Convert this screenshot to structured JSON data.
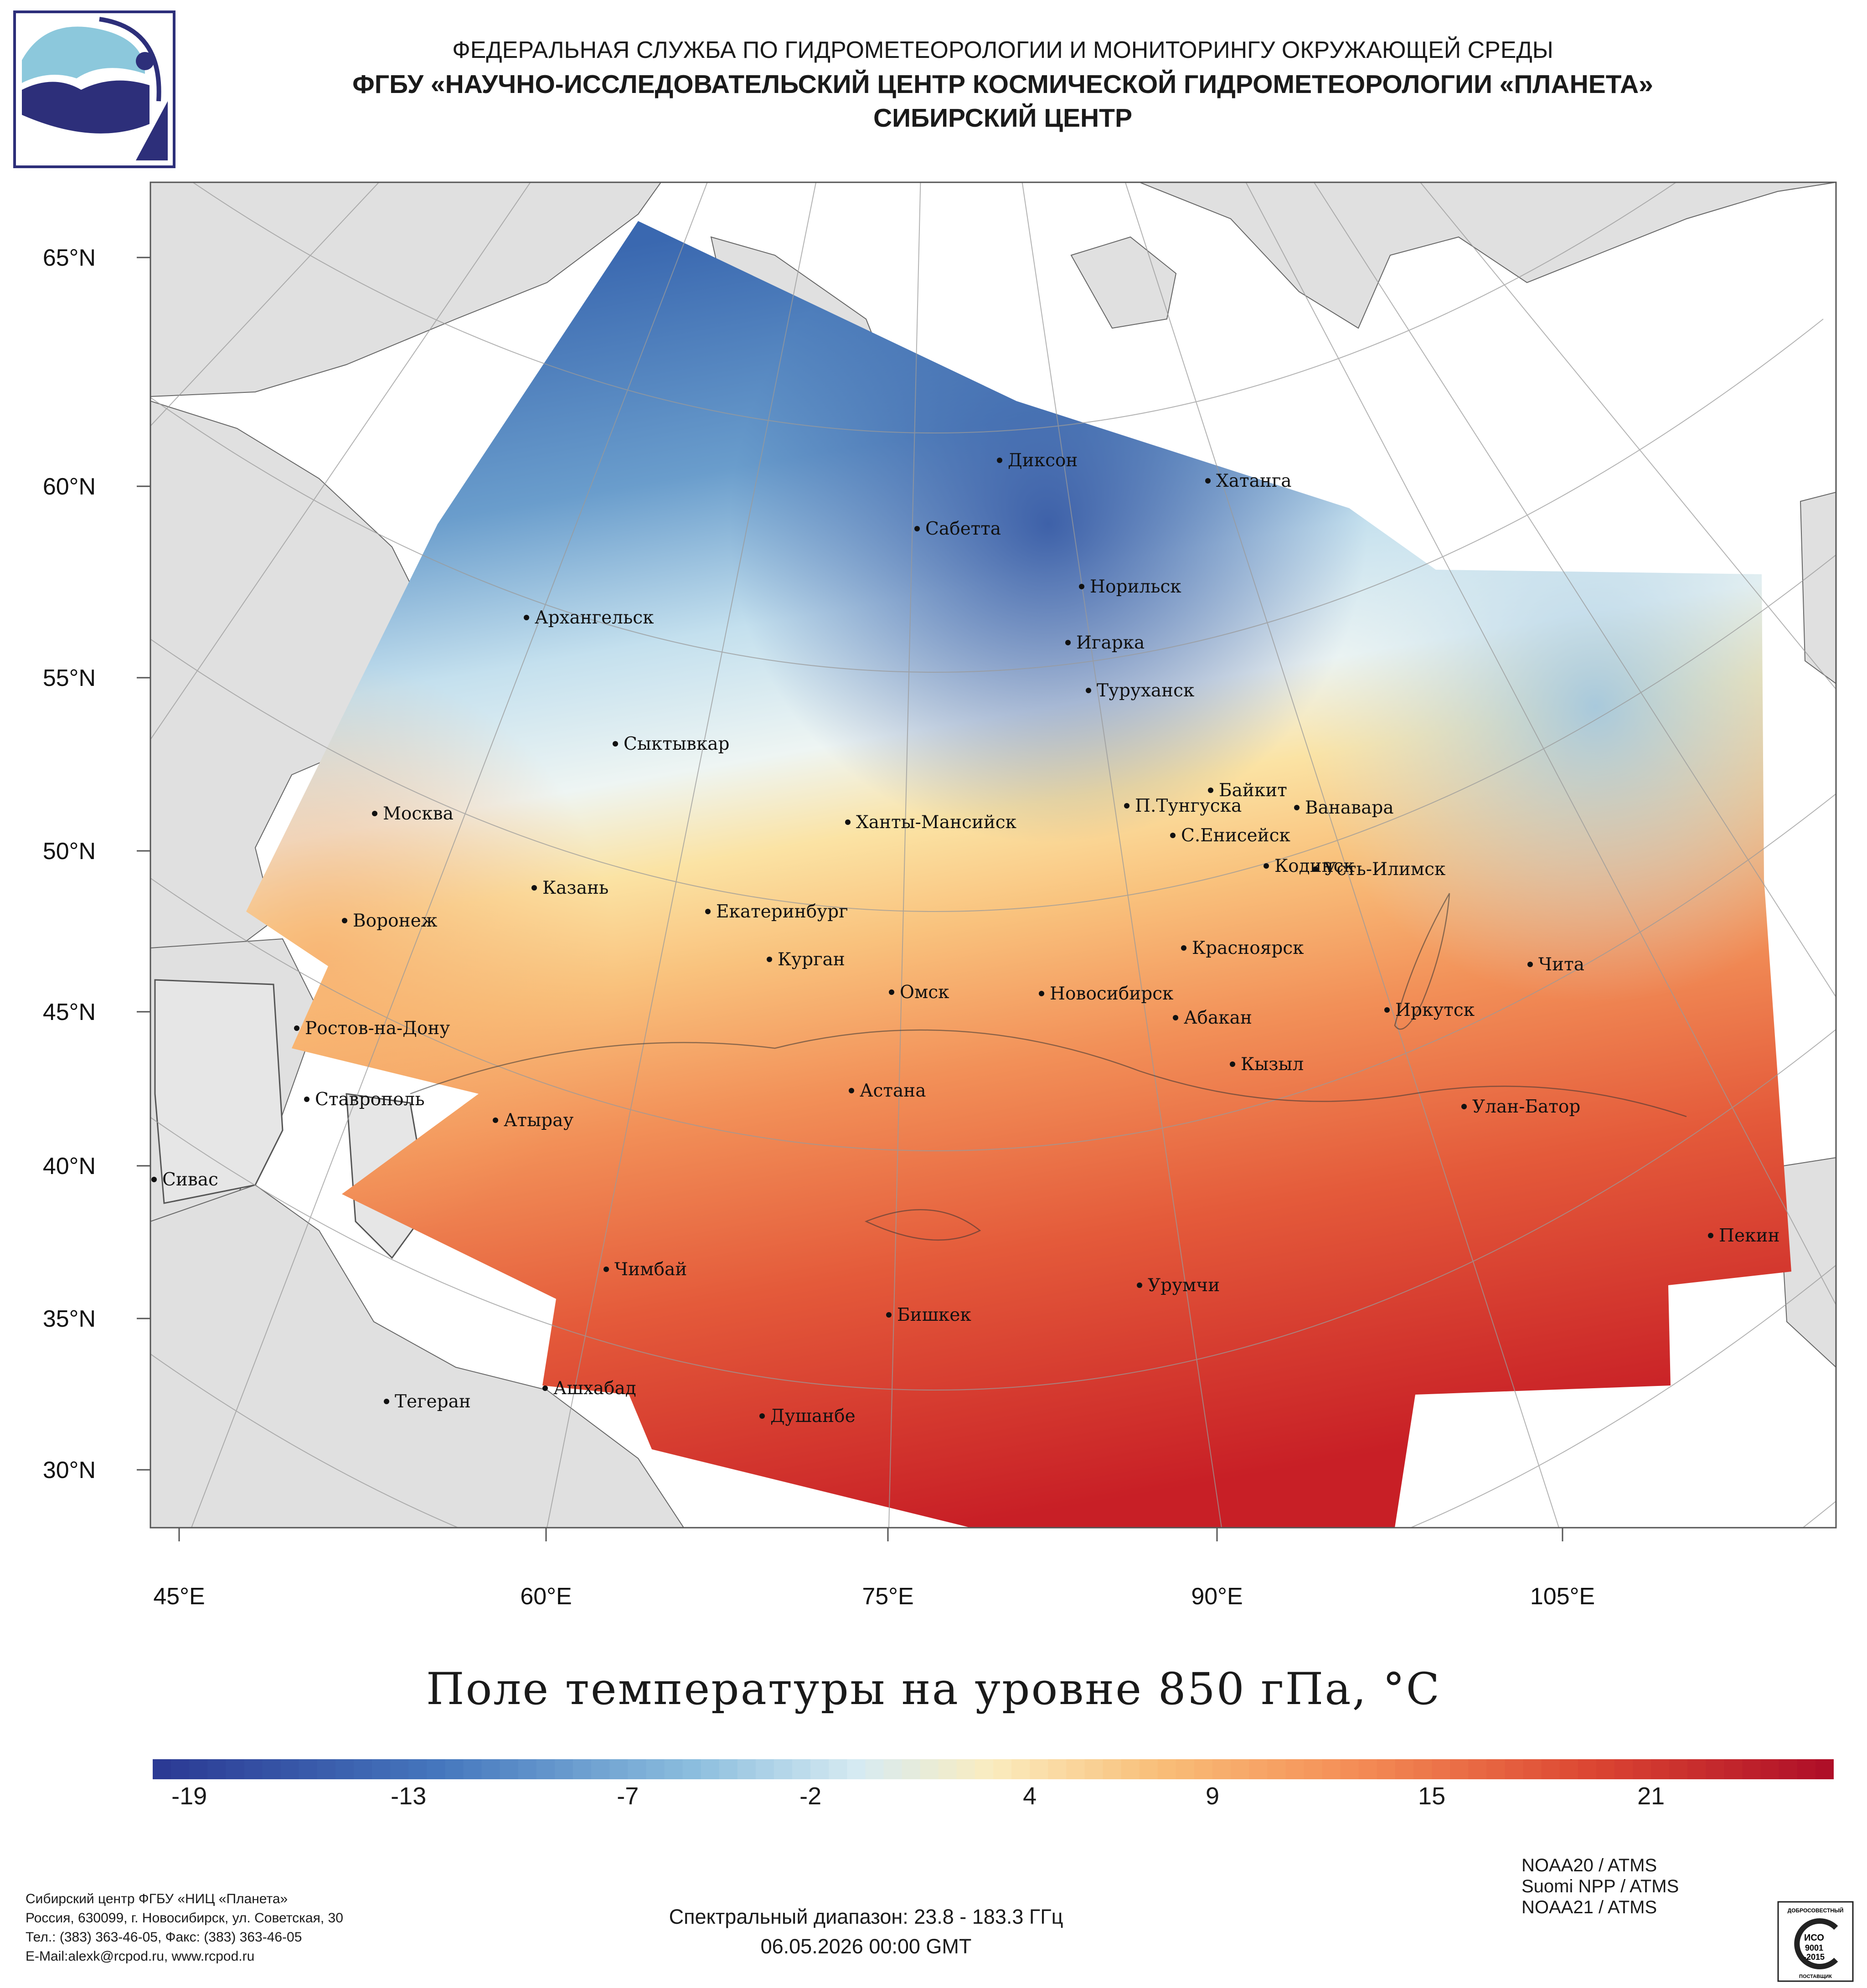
{
  "header": {
    "line1": "ФЕДЕРАЛЬНАЯ СЛУЖБА ПО ГИДРОМЕТЕОРОЛОГИИ И МОНИТОРИНГУ ОКРУЖАЮЩЕЙ СРЕДЫ",
    "line2": "ФГБУ «НАУЧНО-ИССЛЕДОВАТЕЛЬСКИЙ ЦЕНТР КОСМИЧЕСКОЙ ГИДРОМЕТЕОРОЛОГИИ «ПЛАНЕТА»",
    "line3": "СИБИРСКИЙ ЦЕНТР"
  },
  "map": {
    "lat_labels": [
      "65°N",
      "60°N",
      "55°N",
      "50°N",
      "45°N",
      "40°N",
      "35°N",
      "30°N"
    ],
    "lon_labels": [
      "45°E",
      "60°E",
      "75°E",
      "90°E",
      "105°E"
    ],
    "cities": [
      {
        "name": "Диксон"
      },
      {
        "name": "Хатанга"
      },
      {
        "name": "Сабетта"
      },
      {
        "name": "Норильск"
      },
      {
        "name": "Архангельск"
      },
      {
        "name": "Игарка"
      },
      {
        "name": "Туруханск"
      },
      {
        "name": "Сыктывкар"
      },
      {
        "name": "Байкит"
      },
      {
        "name": "П.Тунгуска"
      },
      {
        "name": "Ванавара"
      },
      {
        "name": "Москва"
      },
      {
        "name": "Ханты-Мансийск"
      },
      {
        "name": "С.Енисейск"
      },
      {
        "name": "Кодинск"
      },
      {
        "name": "Усть-Илимск"
      },
      {
        "name": "Казань"
      },
      {
        "name": "Екатеринбург"
      },
      {
        "name": "Воронеж"
      },
      {
        "name": "Красноярск"
      },
      {
        "name": "Курган"
      },
      {
        "name": "Чита"
      },
      {
        "name": "Омск"
      },
      {
        "name": "Новосибирск"
      },
      {
        "name": "Иркутск"
      },
      {
        "name": "Абакан"
      },
      {
        "name": "Ростов-на-Дону"
      },
      {
        "name": "Кызыл"
      },
      {
        "name": "Ставрополь"
      },
      {
        "name": "Астана"
      },
      {
        "name": "Улан-Батор"
      },
      {
        "name": "Атырау"
      },
      {
        "name": "Сивас"
      },
      {
        "name": "Пекин"
      },
      {
        "name": "Чимбай"
      },
      {
        "name": "Урумчи"
      },
      {
        "name": "Бишкек"
      },
      {
        "name": "Ашхабад"
      },
      {
        "name": "Тегеран"
      },
      {
        "name": "Душанбе"
      }
    ],
    "title": "Поле температуры на уровне 850 гПа, °C",
    "colors": {
      "land": "#e0e0e0",
      "sea": "#ffffff",
      "cold": "#2b4e9e",
      "mid": "#e8f2f4",
      "warm": "#f7c27a",
      "hot": "#c81f26"
    }
  },
  "colorbar": {
    "ticks": [
      "-19",
      "-13",
      "-7",
      "-2",
      "4",
      "9",
      "15",
      "21"
    ],
    "range": [
      -20,
      26
    ]
  },
  "footer": {
    "contact": [
      "Сибирский центр ФГБУ «НИЦ «Планета»",
      "Россия, 630099, г. Новосибирск, ул. Советская, 30",
      "Тел.: (383) 363-46-05, Факс: (383) 363-46-05",
      "E-Mail:alexk@rcpod.ru, www.rcpod.ru"
    ],
    "spectral": "Спектральный диапазон: 23.8 - 183.3 ГГц",
    "datetime": "06.05.2026 00:00 GMT",
    "satellites": [
      "NOAA20 / ATMS",
      "Suomi NPP / ATMS",
      "NOAA21 / ATMS"
    ],
    "iso": {
      "top": "ДОБРОСОВЕСТНЫЙ",
      "mid1": "ИСО",
      "mid2": "9001",
      "mid3": "-2015",
      "bottom": "ПОСТАВЩИК"
    }
  }
}
